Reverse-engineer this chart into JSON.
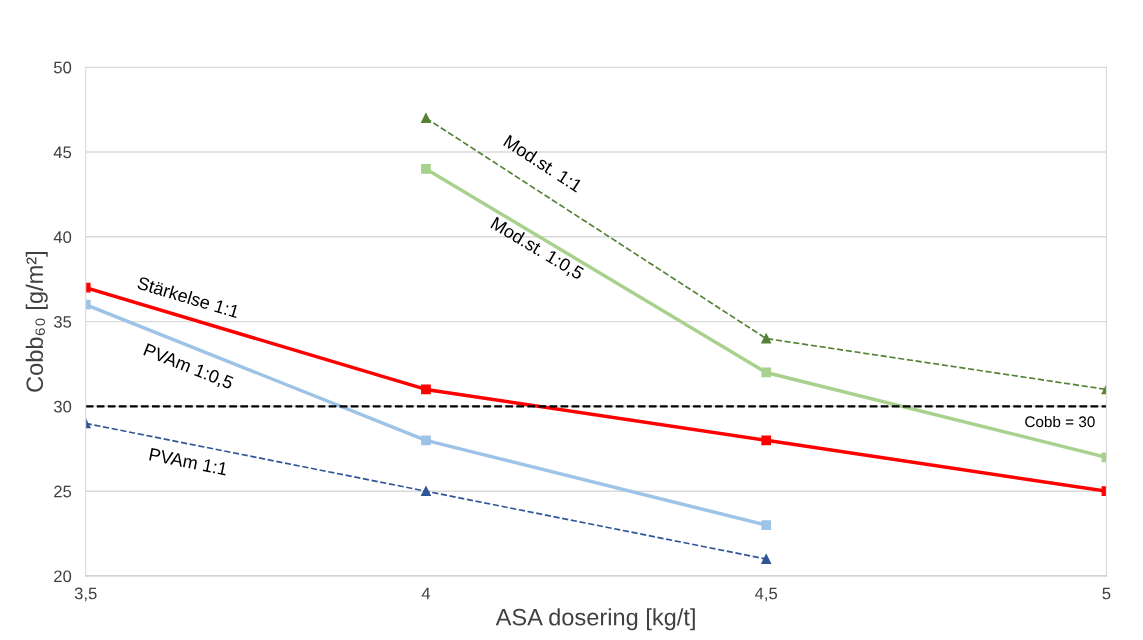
{
  "chart_data": {
    "type": "line",
    "xlabel": "ASA dosering [kg/t]",
    "ylabel": "Cobb₆₀ [g/m²]",
    "x": [
      3.5,
      4,
      4.5,
      5
    ],
    "xlim": [
      3.5,
      5
    ],
    "xticks": [
      {
        "value": 3.5,
        "label": "3,5"
      },
      4,
      {
        "value": 4.5,
        "label": "4,5"
      },
      5
    ],
    "ylim": [
      20,
      50
    ],
    "yticks": [
      20,
      25,
      30,
      35,
      40,
      45,
      50
    ],
    "grid": "y",
    "line_style": "solid",
    "marker": "square",
    "series": [
      {
        "name": "Stärkelse 1:1",
        "color": "#ff0000",
        "values": [
          37,
          31,
          28,
          25
        ]
      },
      {
        "name": "PVAm 1:0,5",
        "color": "#9dc3e6",
        "values": [
          36,
          28,
          23,
          null
        ]
      },
      {
        "name": "PVAm 1:1",
        "color": "#2f5597",
        "values": [
          29,
          25,
          21,
          null
        ],
        "marker": "triangle",
        "line_style": "dashed"
      },
      {
        "name": "Mod.st. 1:1",
        "color": "#548235",
        "values": [
          null,
          47,
          34,
          31
        ],
        "marker": "triangle",
        "line_style": "dashed"
      },
      {
        "name": "Mod.st. 1:0,5",
        "color": "#a9d18e",
        "values": [
          null,
          44,
          32,
          27
        ]
      }
    ],
    "ref_lines": [
      {
        "axis": "y",
        "value": 30,
        "label": "Cobb = 30",
        "color": "#000000",
        "line_style": "dashed"
      }
    ]
  }
}
